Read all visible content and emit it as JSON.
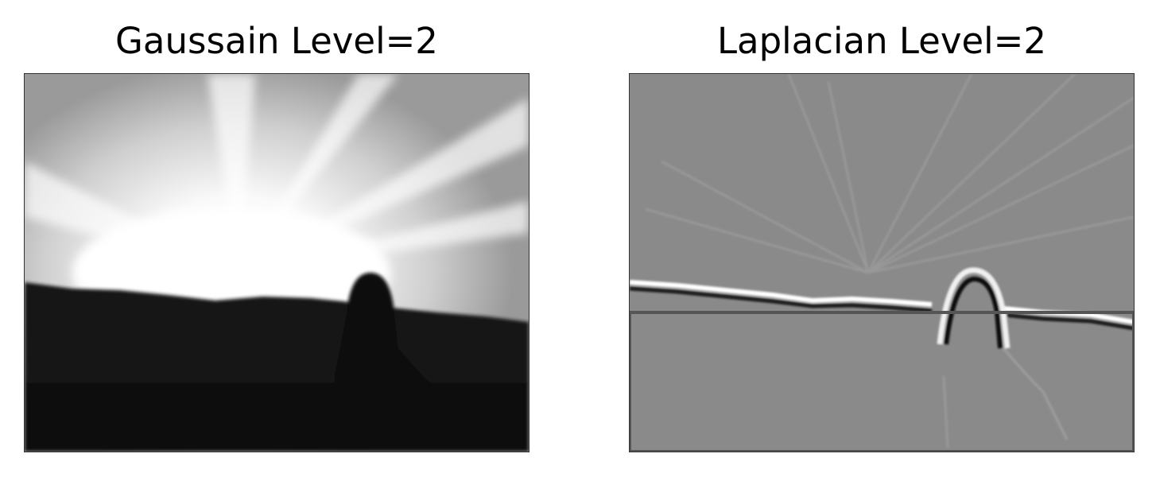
{
  "panels": [
    {
      "title": "Gaussain Level=2",
      "image_description": "blurred grayscale photo: bright sun bursting over a dark treeline with a silhouetted girl in a field",
      "icon": "photo-image"
    },
    {
      "title": "Laplacian Level=2",
      "image_description": "laplacian edge image: mid-gray field with light/dark edges along the horizon, sun rays and the girl's silhouette",
      "icon": "photo-image"
    }
  ],
  "colors": {
    "background": "#ffffff",
    "text": "#000000",
    "laplacian_gray": "#8a8a8a"
  }
}
